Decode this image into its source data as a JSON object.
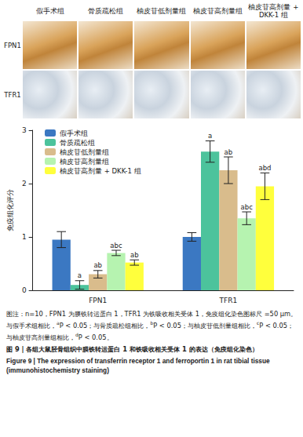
{
  "panels": {
    "columns": [
      "假手术组",
      "骨质疏松组",
      "柚皮苷低剂量组",
      "柚皮苷高剂量组",
      "柚皮苷高剂量 + DKK-1 组"
    ],
    "rows": [
      "FPN1",
      "TFR1"
    ]
  },
  "chart_data": {
    "type": "bar",
    "categories": [
      "FPN1",
      "TFR1"
    ],
    "ylabel": "免疫组化评分",
    "ylim": [
      0,
      3
    ],
    "yticks": [
      0,
      1,
      2,
      3
    ],
    "grid": false,
    "legend": "upper left",
    "series": [
      {
        "name": "假手术组",
        "color": "#3b78c2",
        "values": [
          0.95,
          1.0
        ],
        "errors": [
          0.15,
          0.08
        ],
        "annotations": [
          null,
          null
        ]
      },
      {
        "name": "骨质疏松组",
        "color": "#4cc39c",
        "values": [
          0.1,
          2.6
        ],
        "errors": [
          0.08,
          0.2
        ],
        "annotations": [
          "a",
          "a"
        ]
      },
      {
        "name": "柚皮苷低剂量组",
        "color": "#d9bc8c",
        "values": [
          0.3,
          2.25
        ],
        "errors": [
          0.07,
          0.25
        ],
        "annotations": [
          "ab",
          "ab"
        ]
      },
      {
        "name": "柚皮苷高剂量组",
        "color": "#b6f3b0",
        "values": [
          0.7,
          1.35
        ],
        "errors": [
          0.05,
          0.12
        ],
        "annotations": [
          "abc",
          "abc"
        ]
      },
      {
        "name": "柚皮苷高剂量 + DKK-1 组",
        "color": "#ffff3c",
        "values": [
          0.52,
          1.95
        ],
        "errors": [
          0.05,
          0.25
        ],
        "annotations": [
          "ab",
          "abd"
        ]
      }
    ]
  },
  "caption": {
    "note": [
      {
        "text": "图注：n=10，FPN1 为膜铁转运蛋白 1，TFR1 为铁吸收相关受体 1，免疫组化染色图标尺 =50 μm。与假手术组相比，"
      },
      {
        "sup": "a"
      },
      {
        "text": "P < 0.05；与骨质疏松组相比，"
      },
      {
        "sup": "b"
      },
      {
        "text": "P < 0.05；与柚皮苷低剂量组相比，"
      },
      {
        "sup": "c"
      },
      {
        "text": "P < 0.05；与柚皮苷高剂量组相比，"
      },
      {
        "sup": "d"
      },
      {
        "text": "P < 0.05。"
      }
    ],
    "title": "图 9 | 各组大鼠胫骨组织中膜铁转运蛋白 1 和铁吸收相关受体 1 的表达（免疫组化染色）",
    "title_en": "Figure 9 | The expression of transferrin receptor 1 and ferroportin 1 in rat tibial tissue (immunohistochemistry staining)"
  }
}
